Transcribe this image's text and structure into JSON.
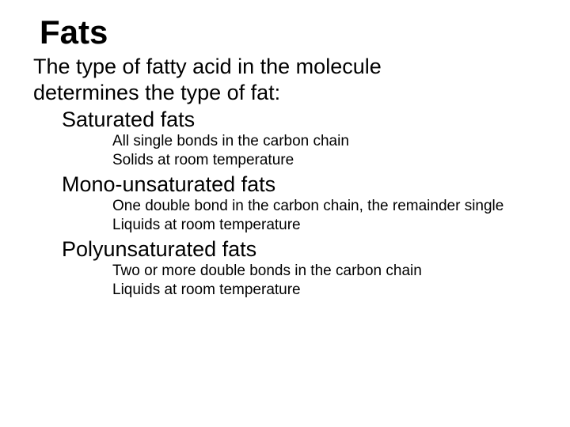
{
  "title": "Fats",
  "intro_line1": "The type of fatty acid in the molecule",
  "intro_line2": "determines the type of fat:",
  "sections": [
    {
      "heading": "Saturated fats",
      "details": [
        "All single bonds in the carbon chain",
        "Solids at room temperature"
      ]
    },
    {
      "heading": "Mono-unsaturated fats",
      "details": [
        "One double bond in the carbon chain, the remainder single",
        "Liquids at room temperature"
      ]
    },
    {
      "heading": "Polyunsaturated fats",
      "details": [
        "Two or more double bonds in the carbon chain",
        "Liquids at room temperature"
      ]
    }
  ],
  "colors": {
    "background": "#ffffff",
    "text": "#000000"
  },
  "typography": {
    "font_family": "Comic Sans MS",
    "title_size_pt": 32,
    "body_size_pt": 20,
    "detail_size_pt": 14
  }
}
